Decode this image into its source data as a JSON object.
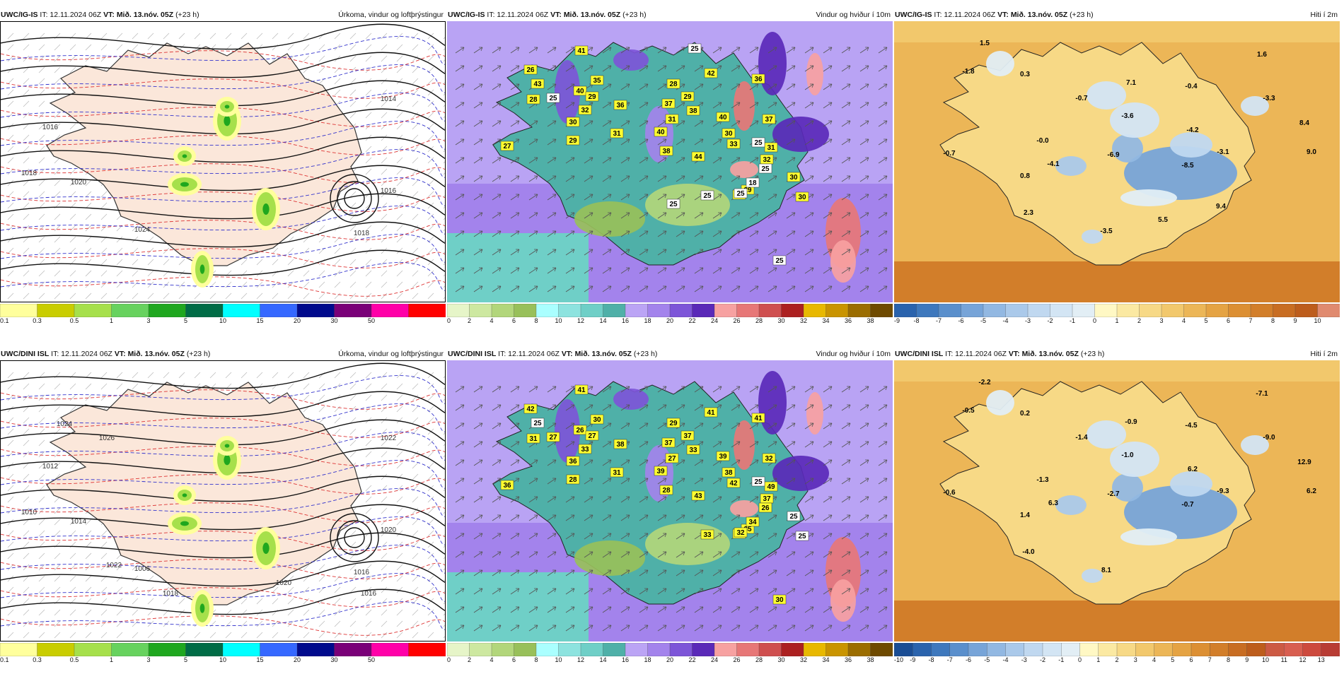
{
  "rows": [
    {
      "model": "UWC/IG-IS",
      "it": "12.11.2024 06Z",
      "vt": "Mið. 13.nóv. 05Z",
      "lead": "(+23 h)",
      "panels": [
        {
          "title": "Úrkoma, vindur og loftþrýstingur",
          "colorbar": [
            "0.1",
            "0.3",
            "0.5",
            "1",
            "3",
            "5",
            "10",
            "15",
            "20",
            "30",
            "50"
          ],
          "labels": [
            "1016",
            "1018",
            "1020",
            "1024",
            "1018",
            "1016",
            "1014"
          ]
        },
        {
          "title": "Vindur og hviður í 10m",
          "colorbar": [
            "0",
            "2",
            "4",
            "6",
            "8",
            "10",
            "12",
            "14",
            "16",
            "18",
            "20",
            "22",
            "24",
            "26",
            "28",
            "30",
            "32",
            "34",
            "36",
            "38"
          ],
          "labels": [
            "41",
            "40",
            "35",
            "26",
            "43",
            "28",
            "25",
            "29",
            "30",
            "29",
            "27",
            "36",
            "42",
            "31",
            "32",
            "37",
            "28",
            "38",
            "40",
            "31",
            "38",
            "29",
            "36",
            "37",
            "40",
            "33",
            "29",
            "44",
            "32",
            "27",
            "31",
            "18",
            "25",
            "25",
            "30",
            "25",
            "25",
            "30",
            "30",
            "25",
            "25",
            "25"
          ]
        },
        {
          "title": "Hiti í 2m",
          "colorbar": [
            "-9",
            "-8",
            "-7",
            "-6",
            "-5",
            "-4",
            "-3",
            "-2",
            "-1",
            "0",
            "1",
            "2",
            "3",
            "4",
            "5",
            "6",
            "7",
            "8",
            "9",
            "10"
          ],
          "labels": [
            "1.5",
            "-1.8",
            "0.3",
            "-0.7",
            "-0.0",
            "-4.1",
            "0.8",
            "2.3",
            "-3.5",
            "-6.9",
            "-3.6",
            "-0.7",
            "7.1",
            "-0.4",
            "1.6",
            "-3.3",
            "8.4",
            "-4.2",
            "-8.5",
            "-3.1",
            "9.0",
            "5.5",
            "9.4"
          ]
        }
      ]
    },
    {
      "model": "UWC/DINI ISL",
      "it": "12.11.2024 06Z",
      "vt": "Mið. 13.nóv. 05Z",
      "lead": "(+23 h)",
      "panels": [
        {
          "title": "Úrkoma, vindur og loftþrýstingur",
          "colorbar": [
            "0.1",
            "0.3",
            "0.5",
            "1",
            "3",
            "5",
            "10",
            "15",
            "20",
            "30",
            "50"
          ],
          "labels": [
            "1012",
            "1010",
            "1014",
            "1006",
            "1016",
            "1020",
            "1022",
            "1024",
            "1026",
            "1022",
            "1018",
            "1020",
            "1016"
          ]
        },
        {
          "title": "Vindur og hviður í 10m",
          "colorbar": [
            "0",
            "2",
            "4",
            "6",
            "8",
            "10",
            "12",
            "14",
            "16",
            "18",
            "20",
            "22",
            "24",
            "26",
            "28",
            "30",
            "32",
            "34",
            "36",
            "38"
          ],
          "labels": [
            "41",
            "26",
            "30",
            "42",
            "25",
            "31",
            "27",
            "27",
            "36",
            "28",
            "36",
            "38",
            "41",
            "31",
            "33",
            "37",
            "29",
            "33",
            "39",
            "27",
            "28",
            "37",
            "41",
            "32",
            "39",
            "42",
            "35",
            "43",
            "37",
            "44",
            "49",
            "34",
            "26",
            "25",
            "38",
            "32",
            "33",
            "25",
            "25",
            "30"
          ]
        },
        {
          "title": "Hiti í 2m",
          "colorbar": [
            "-10",
            "-9",
            "-8",
            "-7",
            "-6",
            "-5",
            "-4",
            "-3",
            "-2",
            "-1",
            "0",
            "1",
            "2",
            "3",
            "4",
            "5",
            "6",
            "7",
            "8",
            "9",
            "10",
            "11",
            "12",
            "13"
          ],
          "labels": [
            "-2.2",
            "-0.5",
            "0.2",
            "-0.6",
            "-1.3",
            "6.3",
            "1.4",
            "-4.0",
            "8.1",
            "-2.7",
            "-1.0",
            "-1.4",
            "-0.9",
            "-4.5",
            "-7.1",
            "-9.0",
            "12.9",
            "6.2",
            "-0.7",
            "-9.3",
            "6.2"
          ]
        }
      ]
    }
  ],
  "colors": {
    "precip": [
      "#ffff9c",
      "#c9cd00",
      "#a6e04b",
      "#67d25e",
      "#1fa71f",
      "#006c46",
      "#00ffff",
      "#3568ff",
      "#000a8c",
      "#7a0078",
      "#ff00a8",
      "#ff0000"
    ],
    "wind": [
      "#e6f5c8",
      "#cde8a0",
      "#b2d67b",
      "#98c05a",
      "#aaffff",
      "#8de3df",
      "#6fcfc7",
      "#4fb0a8",
      "#bba4f5",
      "#a383ec",
      "#7d55d8",
      "#5a29b8",
      "#f7a1a1",
      "#e77777",
      "#cf4f4f",
      "#ac2020",
      "#e8b800",
      "#c99400",
      "#9b6d00",
      "#6e4a00"
    ],
    "temp": [
      "#2a63ad",
      "#3e78bd",
      "#5a8fcc",
      "#77a4d8",
      "#92b8e2",
      "#aac9ea",
      "#c0d8f0",
      "#d3e5f4",
      "#e2eef5",
      "#fff8c4",
      "#fbe9a2",
      "#f7d986",
      "#f2c86c",
      "#ecb657",
      "#e5a343",
      "#dc8f33",
      "#d27e2a",
      "#c86d22",
      "#bd5d1c",
      "#e08a6f"
    ],
    "temp2": [
      "#1a4d94",
      "#2a63ad",
      "#3e78bd",
      "#5a8fcc",
      "#77a4d8",
      "#92b8e2",
      "#aac9ea",
      "#c0d8f0",
      "#d3e5f4",
      "#e2eef5",
      "#fff8c4",
      "#fbe9a2",
      "#f7d986",
      "#f2c86c",
      "#ecb657",
      "#e5a343",
      "#dc8f33",
      "#d27e2a",
      "#c86d22",
      "#bd5d1c",
      "#cc5a44",
      "#d85e50",
      "#cd4a3e",
      "#b83c34"
    ]
  }
}
